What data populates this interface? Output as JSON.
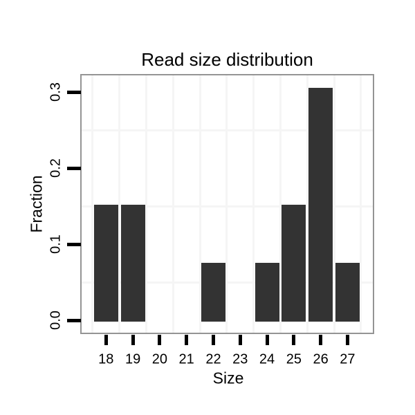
{
  "chart_data": {
    "type": "bar",
    "title": "Read size distribution",
    "xlabel": "Size",
    "ylabel": "Fraction",
    "categories": [
      "18",
      "19",
      "20",
      "21",
      "22",
      "23",
      "24",
      "25",
      "26",
      "27"
    ],
    "values": [
      0.1538,
      0.1538,
      0,
      0,
      0.0769,
      0,
      0.0769,
      0.1538,
      0.3077,
      0.0769
    ],
    "y_tick_values": [
      0.0,
      0.1,
      0.2,
      0.3
    ],
    "y_tick_labels": [
      "0.0",
      "0.1",
      "0.2",
      "0.3"
    ],
    "ylim": [
      0,
      0.322
    ],
    "grid": {
      "y_minor_values": [
        0.05,
        0.15,
        0.25
      ],
      "x_minor": "between-categories",
      "major_lines_visible": false
    },
    "legend": "none",
    "colors": {
      "bar": "#333333",
      "panel_border": "#949494",
      "gridline": "#f5f5f5",
      "tick": "#000000",
      "text": "#000000",
      "background": "#ffffff"
    }
  }
}
